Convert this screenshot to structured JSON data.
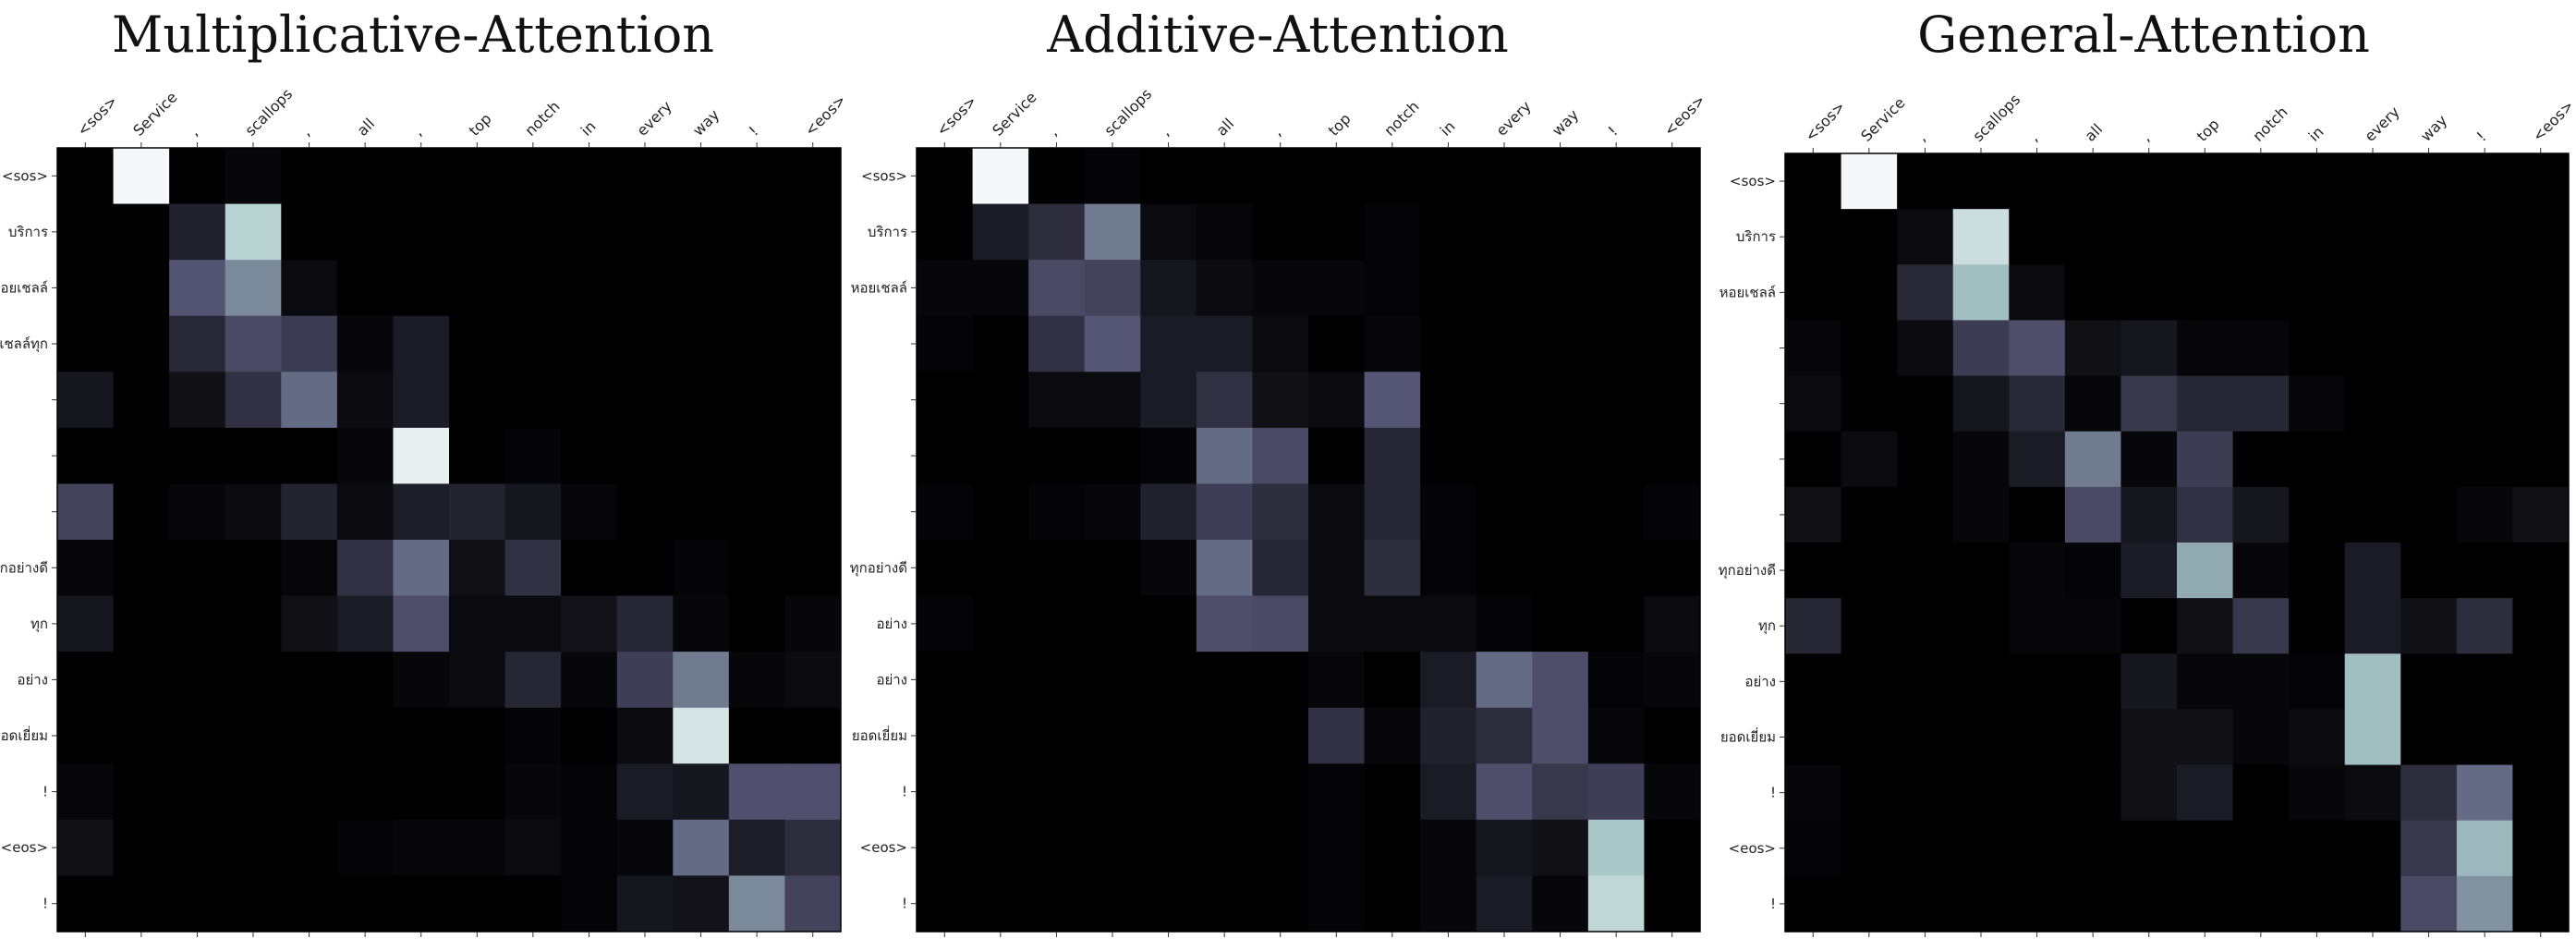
{
  "chart_data": [
    {
      "type": "heatmap",
      "title": "Multiplicative-Attention",
      "x_tokens": [
        "<sos>",
        "Service",
        ",",
        "scallops",
        ",",
        "all",
        ",",
        "top",
        "notch",
        "in",
        "every",
        "way",
        "!",
        "<eos>"
      ],
      "y_tokens": [
        "<sos>",
        "บริการ",
        "หอยเชลล์",
        "หอยเชลล์ทุก",
        "",
        "",
        "",
        "ทุกอย่างดี",
        "ทุก",
        "อย่าง",
        "ยอดเยี่ยม",
        "!",
        "<eos>",
        "!"
      ],
      "colormap": "bone",
      "values": [
        [
          0.0,
          0.97,
          0.0,
          0.03,
          0.0,
          0.0,
          0.0,
          0.0,
          0.0,
          0.0,
          0.0,
          0.0,
          0.0,
          0.0
        ],
        [
          0.0,
          0.0,
          0.15,
          0.8,
          0.0,
          0.0,
          0.0,
          0.0,
          0.0,
          0.0,
          0.0,
          0.0,
          0.0,
          0.0
        ],
        [
          0.0,
          0.0,
          0.37,
          0.55,
          0.05,
          0.0,
          0.0,
          0.0,
          0.0,
          0.0,
          0.0,
          0.0,
          0.0,
          0.0
        ],
        [
          0.0,
          0.0,
          0.18,
          0.33,
          0.27,
          0.03,
          0.12,
          0.0,
          0.0,
          0.0,
          0.0,
          0.0,
          0.0,
          0.0
        ],
        [
          0.1,
          0.0,
          0.07,
          0.22,
          0.45,
          0.05,
          0.12,
          0.0,
          0.0,
          0.0,
          0.0,
          0.0,
          0.0,
          0.0
        ],
        [
          0.0,
          0.0,
          0.0,
          0.0,
          0.0,
          0.03,
          0.93,
          0.0,
          0.02,
          0.0,
          0.0,
          0.0,
          0.0,
          0.0
        ],
        [
          0.3,
          0.0,
          0.03,
          0.05,
          0.16,
          0.05,
          0.13,
          0.16,
          0.1,
          0.03,
          0.0,
          0.0,
          0.0,
          0.0
        ],
        [
          0.03,
          0.0,
          0.0,
          0.0,
          0.03,
          0.22,
          0.45,
          0.07,
          0.22,
          0.0,
          0.0,
          0.02,
          0.0,
          0.0
        ],
        [
          0.1,
          0.0,
          0.0,
          0.0,
          0.07,
          0.12,
          0.35,
          0.05,
          0.05,
          0.08,
          0.17,
          0.03,
          0.0,
          0.03
        ],
        [
          0.0,
          0.0,
          0.0,
          0.0,
          0.0,
          0.0,
          0.03,
          0.05,
          0.17,
          0.03,
          0.28,
          0.5,
          0.03,
          0.05
        ],
        [
          0.0,
          0.0,
          0.0,
          0.0,
          0.0,
          0.0,
          0.0,
          0.0,
          0.02,
          0.0,
          0.05,
          0.88,
          0.0,
          0.0
        ],
        [
          0.03,
          0.0,
          0.0,
          0.0,
          0.0,
          0.0,
          0.0,
          0.0,
          0.03,
          0.02,
          0.12,
          0.1,
          0.36,
          0.36
        ],
        [
          0.07,
          0.0,
          0.0,
          0.0,
          0.0,
          0.02,
          0.03,
          0.03,
          0.05,
          0.02,
          0.03,
          0.45,
          0.13,
          0.2
        ],
        [
          0.0,
          0.0,
          0.0,
          0.0,
          0.0,
          0.0,
          0.0,
          0.0,
          0.0,
          0.02,
          0.1,
          0.08,
          0.55,
          0.3
        ]
      ]
    },
    {
      "type": "heatmap",
      "title": "Additive-Attention",
      "x_tokens": [
        "<sos>",
        "Service",
        ",",
        "scallops",
        ",",
        "all",
        ",",
        "top",
        "notch",
        "in",
        "every",
        "way",
        "!",
        "<eos>"
      ],
      "y_tokens": [
        "<sos>",
        "บริการ",
        "หอยเชลล์",
        "",
        "",
        "",
        "",
        "ทุกอย่างดี",
        "อย่าง",
        "อย่าง",
        "ยอดเยี่ยม",
        "!",
        "<eos>",
        "!"
      ],
      "colormap": "bone",
      "values": [
        [
          0.0,
          0.97,
          0.0,
          0.02,
          0.0,
          0.0,
          0.0,
          0.0,
          0.0,
          0.0,
          0.0,
          0.0,
          0.0,
          0.0
        ],
        [
          0.0,
          0.12,
          0.2,
          0.5,
          0.05,
          0.03,
          0.0,
          0.0,
          0.02,
          0.0,
          0.0,
          0.0,
          0.0,
          0.0
        ],
        [
          0.03,
          0.03,
          0.33,
          0.3,
          0.1,
          0.05,
          0.03,
          0.03,
          0.02,
          0.0,
          0.0,
          0.0,
          0.0,
          0.0
        ],
        [
          0.02,
          0.0,
          0.22,
          0.38,
          0.12,
          0.12,
          0.05,
          0.0,
          0.03,
          0.0,
          0.0,
          0.0,
          0.0,
          0.0
        ],
        [
          0.0,
          0.0,
          0.05,
          0.05,
          0.12,
          0.22,
          0.07,
          0.05,
          0.38,
          0.0,
          0.0,
          0.0,
          0.0,
          0.0
        ],
        [
          0.0,
          0.0,
          0.0,
          0.0,
          0.02,
          0.45,
          0.33,
          0.0,
          0.17,
          0.0,
          0.0,
          0.0,
          0.0,
          0.0
        ],
        [
          0.02,
          0.0,
          0.02,
          0.03,
          0.15,
          0.28,
          0.2,
          0.05,
          0.17,
          0.02,
          0.0,
          0.0,
          0.0,
          0.02
        ],
        [
          0.0,
          0.0,
          0.0,
          0.0,
          0.03,
          0.45,
          0.17,
          0.05,
          0.2,
          0.02,
          0.0,
          0.0,
          0.0,
          0.0
        ],
        [
          0.02,
          0.0,
          0.0,
          0.0,
          0.0,
          0.35,
          0.33,
          0.05,
          0.05,
          0.05,
          0.02,
          0.0,
          0.0,
          0.05
        ],
        [
          0.0,
          0.0,
          0.0,
          0.0,
          0.0,
          0.0,
          0.0,
          0.03,
          0.0,
          0.12,
          0.45,
          0.35,
          0.02,
          0.03
        ],
        [
          0.0,
          0.0,
          0.0,
          0.0,
          0.0,
          0.0,
          0.0,
          0.22,
          0.03,
          0.15,
          0.2,
          0.35,
          0.03,
          0.0
        ],
        [
          0.0,
          0.0,
          0.0,
          0.0,
          0.0,
          0.0,
          0.0,
          0.02,
          0.0,
          0.12,
          0.35,
          0.25,
          0.28,
          0.03
        ],
        [
          0.0,
          0.0,
          0.0,
          0.0,
          0.0,
          0.0,
          0.0,
          0.02,
          0.0,
          0.03,
          0.1,
          0.07,
          0.75,
          0.0
        ],
        [
          0.0,
          0.0,
          0.0,
          0.0,
          0.0,
          0.0,
          0.0,
          0.02,
          0.0,
          0.03,
          0.12,
          0.03,
          0.82,
          0.0
        ]
      ]
    },
    {
      "type": "heatmap",
      "title": "General-Attention",
      "x_tokens": [
        "<sos>",
        "Service",
        ",",
        "scallops",
        ",",
        "all",
        ",",
        "top",
        "notch",
        "in",
        "every",
        "way",
        "!",
        "<eos>"
      ],
      "y_tokens": [
        "<sos>",
        "บริการ",
        "หอยเชลล์",
        "",
        "",
        "",
        "",
        "ทุกอย่างดี",
        "ทุก",
        "อย่าง",
        "ยอดเยี่ยม",
        "!",
        "<eos>",
        "!"
      ],
      "colormap": "bone",
      "values": [
        [
          0.0,
          0.97,
          0.0,
          0.0,
          0.0,
          0.0,
          0.0,
          0.0,
          0.0,
          0.0,
          0.0,
          0.0,
          0.0,
          0.0
        ],
        [
          0.0,
          0.0,
          0.05,
          0.85,
          0.0,
          0.0,
          0.0,
          0.0,
          0.0,
          0.0,
          0.0,
          0.0,
          0.0,
          0.0
        ],
        [
          0.0,
          0.0,
          0.18,
          0.72,
          0.05,
          0.0,
          0.0,
          0.0,
          0.0,
          0.0,
          0.0,
          0.0,
          0.0,
          0.0
        ],
        [
          0.03,
          0.0,
          0.05,
          0.27,
          0.35,
          0.07,
          0.1,
          0.03,
          0.03,
          0.0,
          0.0,
          0.0,
          0.0,
          0.0
        ],
        [
          0.05,
          0.0,
          0.0,
          0.1,
          0.18,
          0.03,
          0.25,
          0.17,
          0.17,
          0.03,
          0.0,
          0.0,
          0.0,
          0.0
        ],
        [
          0.0,
          0.05,
          0.0,
          0.03,
          0.12,
          0.5,
          0.03,
          0.27,
          0.0,
          0.0,
          0.0,
          0.0,
          0.0,
          0.0
        ],
        [
          0.07,
          0.0,
          0.0,
          0.03,
          0.0,
          0.33,
          0.1,
          0.22,
          0.1,
          0.0,
          0.0,
          0.0,
          0.03,
          0.07
        ],
        [
          0.0,
          0.0,
          0.0,
          0.0,
          0.03,
          0.02,
          0.12,
          0.65,
          0.03,
          0.0,
          0.12,
          0.0,
          0.0,
          0.0
        ],
        [
          0.17,
          0.0,
          0.0,
          0.0,
          0.03,
          0.03,
          0.0,
          0.07,
          0.25,
          0.0,
          0.12,
          0.07,
          0.2,
          0.0
        ],
        [
          0.0,
          0.0,
          0.0,
          0.0,
          0.0,
          0.0,
          0.1,
          0.03,
          0.03,
          0.02,
          0.72,
          0.0,
          0.0,
          0.0
        ],
        [
          0.0,
          0.0,
          0.0,
          0.0,
          0.0,
          0.0,
          0.07,
          0.07,
          0.03,
          0.05,
          0.72,
          0.0,
          0.0,
          0.0
        ],
        [
          0.03,
          0.0,
          0.0,
          0.0,
          0.0,
          0.0,
          0.07,
          0.12,
          0.0,
          0.03,
          0.05,
          0.2,
          0.45,
          0.0
        ],
        [
          0.02,
          0.0,
          0.0,
          0.0,
          0.0,
          0.0,
          0.0,
          0.0,
          0.0,
          0.0,
          0.0,
          0.25,
          0.7,
          0.0
        ],
        [
          0.0,
          0.0,
          0.0,
          0.0,
          0.0,
          0.0,
          0.0,
          0.0,
          0.0,
          0.0,
          0.0,
          0.33,
          0.58,
          0.0
        ]
      ]
    }
  ]
}
